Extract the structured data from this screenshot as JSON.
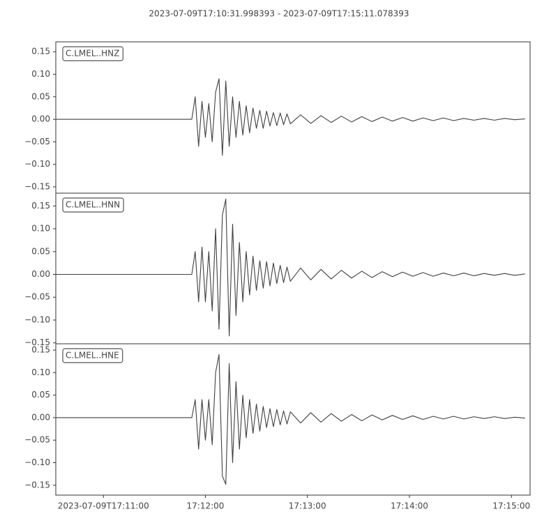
{
  "title": "2023-07-09T17:10:31.998393  -  2023-07-09T17:15:11.078393",
  "chart_data": {
    "type": "line",
    "x": [
      "17:10:32",
      "17:11:52",
      "17:11:54",
      "17:11:56",
      "17:11:58",
      "17:12:00",
      "17:12:02",
      "17:12:04",
      "17:12:06",
      "17:12:08",
      "17:12:10",
      "17:12:12",
      "17:12:14",
      "17:12:16",
      "17:12:18",
      "17:12:20",
      "17:12:22",
      "17:12:24",
      "17:12:26",
      "17:12:28",
      "17:12:30",
      "17:12:32",
      "17:12:34",
      "17:12:36",
      "17:12:38",
      "17:12:40",
      "17:12:42",
      "17:12:44",
      "17:12:46",
      "17:12:48",
      "17:12:50",
      "17:12:56",
      "17:13:02",
      "17:13:08",
      "17:13:14",
      "17:13:20",
      "17:13:26",
      "17:13:32",
      "17:13:38",
      "17:13:44",
      "17:13:50",
      "17:13:56",
      "17:14:02",
      "17:14:08",
      "17:14:14",
      "17:14:20",
      "17:14:26",
      "17:14:32",
      "17:14:38",
      "17:14:44",
      "17:14:50",
      "17:14:56",
      "17:15:02",
      "17:15:08"
    ],
    "xlim": [
      "17:10:32",
      "17:15:11"
    ],
    "xticks": [
      {
        "value": "17:11:00",
        "label": "2023-07-09T17:11:00"
      },
      "17:12:00",
      "17:13:00",
      "17:14:00",
      "17:15:00"
    ],
    "yticks": [
      {
        "value": -0.15,
        "label": "−0.15"
      },
      {
        "value": -0.1,
        "label": "−0.10"
      },
      {
        "value": -0.05,
        "label": "−0.05"
      },
      {
        "value": 0,
        "label": "0.00"
      },
      0.05,
      {
        "value": 0.1,
        "label": "0.10"
      },
      0.15
    ],
    "series": [
      {
        "name": "C.LMEL..HNZ",
        "color": "#3f3f3f",
        "ylim": [
          -0.164,
          0.172
        ],
        "values": [
          0,
          0,
          0.05,
          -0.06,
          0.04,
          -0.04,
          0.035,
          -0.05,
          0.06,
          0.09,
          -0.08,
          0.085,
          -0.06,
          0.05,
          -0.04,
          0.04,
          -0.035,
          0.03,
          -0.03,
          0.025,
          -0.02,
          0.02,
          -0.02,
          0.018,
          -0.015,
          0.015,
          -0.014,
          0.014,
          -0.012,
          0.012,
          -0.01,
          0.01,
          -0.009,
          0.008,
          -0.007,
          0.007,
          -0.006,
          0.006,
          -0.005,
          0.005,
          -0.004,
          0.004,
          -0.004,
          0.003,
          -0.003,
          0.003,
          -0.003,
          0.002,
          -0.002,
          0.002,
          -0.002,
          0.002,
          -0.001,
          0.001
        ]
      },
      {
        "name": "C.LMEL..HNN",
        "color": "#3f3f3f",
        "ylim": [
          -0.152,
          0.178
        ],
        "values": [
          0,
          0,
          0.05,
          -0.06,
          0.06,
          -0.06,
          0.05,
          -0.08,
          0.1,
          -0.12,
          0.13,
          0.165,
          -0.135,
          0.11,
          -0.09,
          0.07,
          -0.06,
          0.05,
          -0.045,
          0.04,
          -0.035,
          0.03,
          -0.03,
          0.028,
          -0.025,
          0.025,
          -0.02,
          0.02,
          -0.018,
          0.016,
          -0.015,
          0.014,
          -0.012,
          0.011,
          -0.01,
          0.009,
          -0.008,
          0.007,
          -0.007,
          0.006,
          -0.005,
          0.005,
          -0.004,
          0.004,
          -0.004,
          0.003,
          -0.003,
          0.003,
          -0.003,
          0.002,
          -0.002,
          0.002,
          -0.002,
          0.001
        ]
      },
      {
        "name": "C.LMEL..HNE",
        "color": "#3f3f3f",
        "ylim": [
          -0.172,
          0.164
        ],
        "values": [
          0,
          0,
          0.04,
          -0.07,
          0.04,
          -0.05,
          0.04,
          -0.06,
          0.1,
          0.14,
          -0.13,
          -0.148,
          0.12,
          -0.1,
          0.08,
          -0.07,
          0.05,
          -0.045,
          0.04,
          -0.035,
          0.03,
          -0.03,
          0.025,
          -0.022,
          0.02,
          -0.02,
          0.018,
          -0.016,
          0.015,
          -0.014,
          0.013,
          -0.012,
          0.011,
          -0.01,
          0.009,
          -0.008,
          0.007,
          -0.007,
          0.006,
          -0.005,
          0.005,
          -0.004,
          0.004,
          -0.004,
          0.003,
          -0.003,
          0.003,
          -0.003,
          0.002,
          -0.002,
          0.002,
          -0.002,
          0.001,
          -0.001
        ]
      }
    ]
  }
}
